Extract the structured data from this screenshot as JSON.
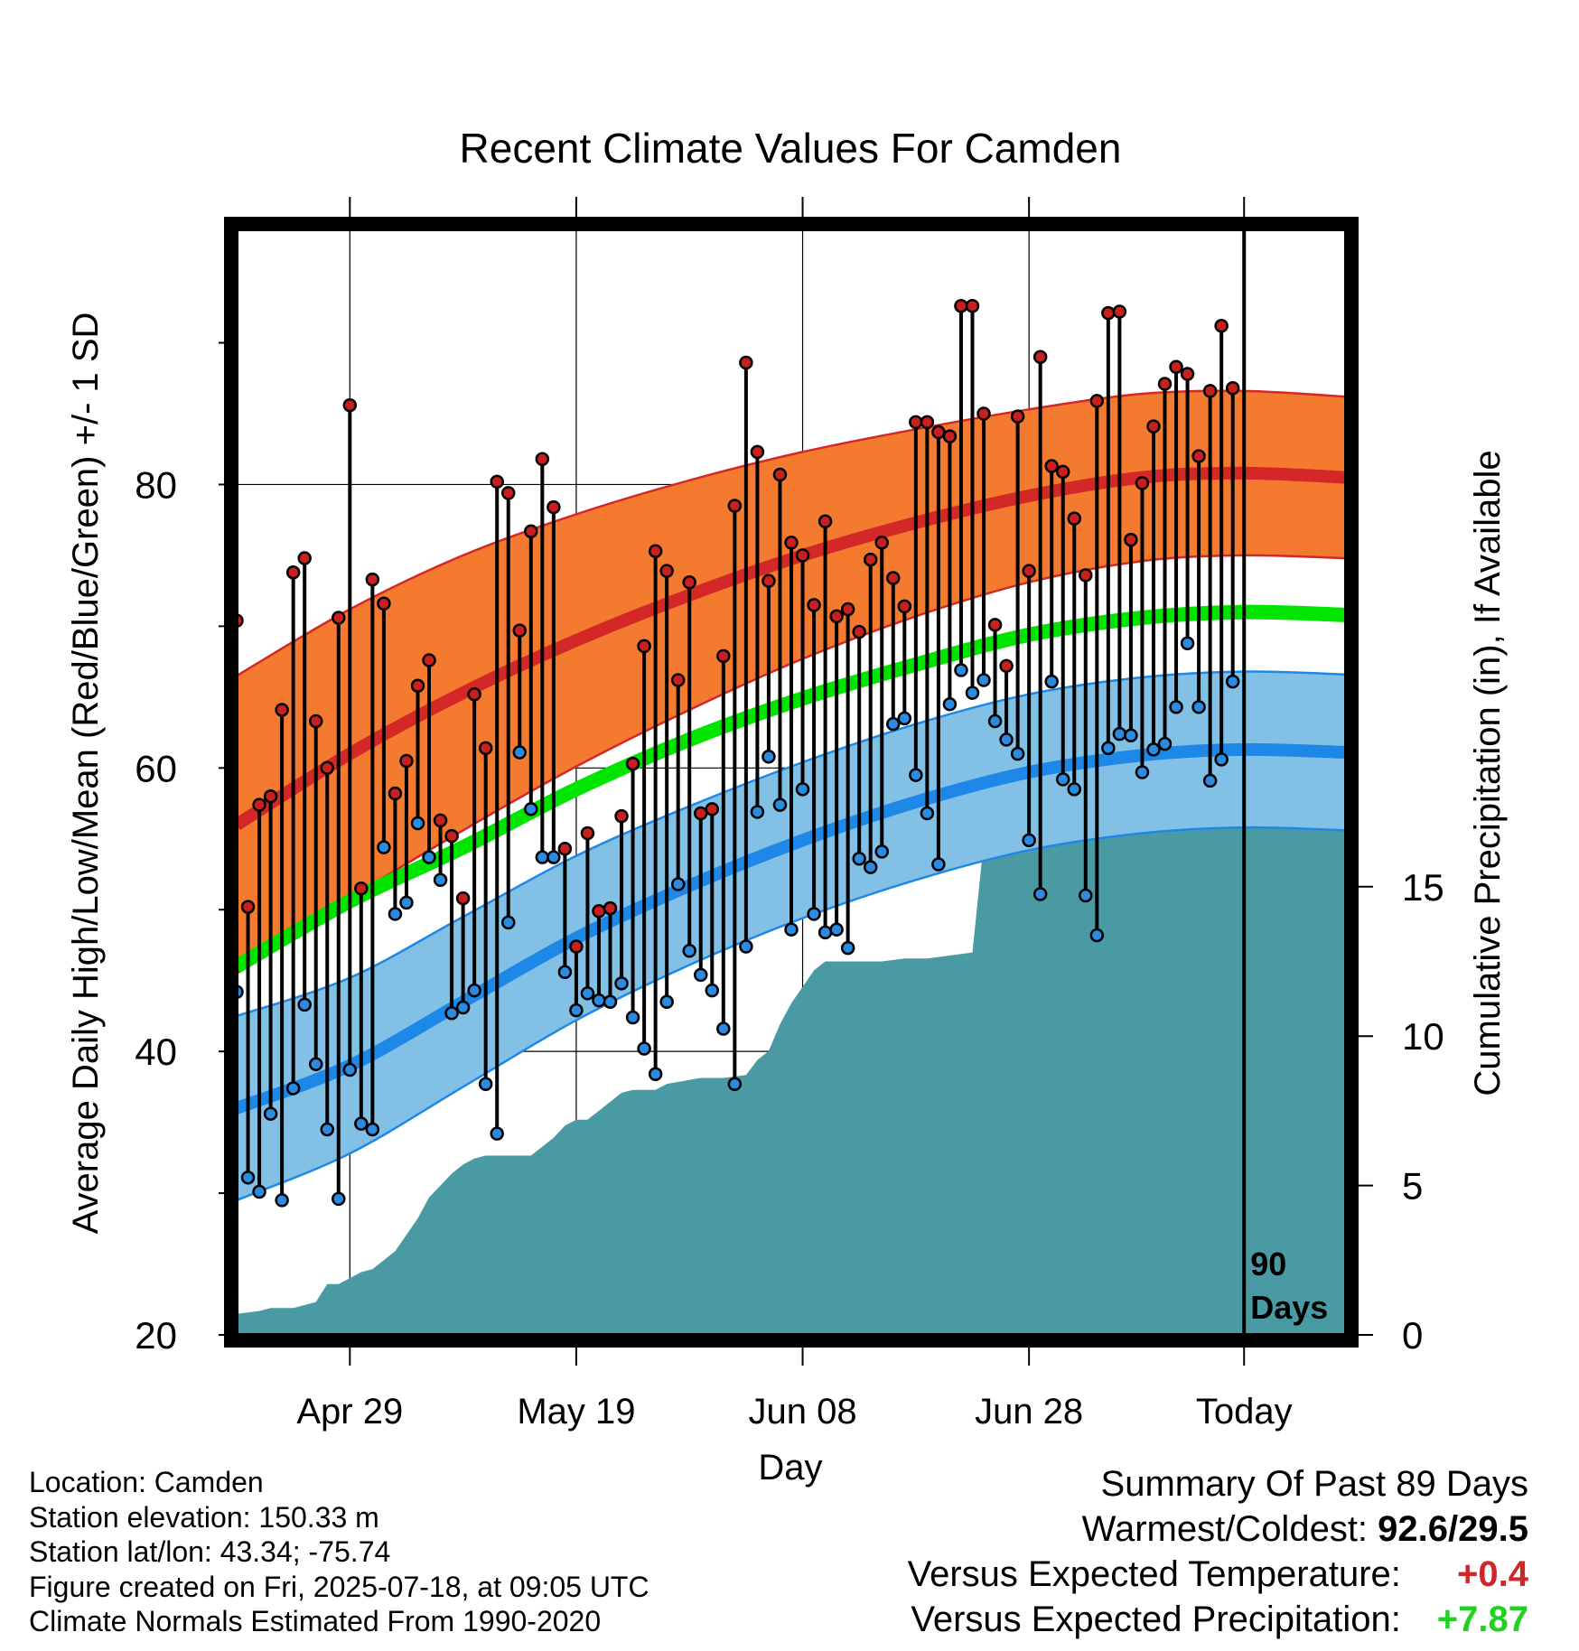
{
  "chart_data": {
    "type": "line",
    "title": "Recent Climate Values For Camden",
    "xlabel": "Day",
    "ylabel": "Average Daily High/Low/Mean (Red/Blue/Green) +/- 1 SD",
    "y2label": "Cumulative Precipitation (in), If Available",
    "ylim": [
      20,
      98
    ],
    "y2lim": [
      0,
      37
    ],
    "xlim": [
      -89,
      9
    ],
    "x_ticks": [
      {
        "day": -79,
        "label": "Apr 29"
      },
      {
        "day": -59,
        "label": "May 19"
      },
      {
        "day": -39,
        "label": "Jun 08"
      },
      {
        "day": -19,
        "label": "Jun 28"
      },
      {
        "day": 0,
        "label": "Today"
      }
    ],
    "y_ticks": [
      20,
      40,
      60,
      80
    ],
    "y_minor_ticks": [
      30,
      50,
      70,
      90
    ],
    "y2_ticks": [
      0,
      5,
      10,
      15
    ],
    "today_label": "90 Days",
    "grid": true,
    "colors": {
      "high": "#d42828",
      "high_band": "#f47a30",
      "low": "#1e88e8",
      "low_band": "#83c0e6",
      "mean": "#00e400",
      "precip": "#4a9aa3",
      "high_dot": "#c8201e",
      "low_dot": "#2a8be0"
    },
    "normals": {
      "days": [
        -89,
        -79,
        -69,
        -59,
        -49,
        -39,
        -29,
        -19,
        -9,
        0,
        9
      ],
      "high_mean": [
        56.0,
        61.0,
        65.3,
        69.0,
        72.2,
        75.0,
        77.3,
        79.2,
        80.5,
        80.8,
        80.5
      ],
      "high_sd": [
        10.5,
        10.2,
        9.7,
        8.9,
        8.1,
        7.3,
        6.6,
        6.1,
        5.9,
        5.8,
        5.7
      ],
      "low_mean": [
        36.0,
        39.0,
        43.5,
        48.0,
        51.7,
        54.9,
        57.6,
        59.7,
        60.9,
        61.3,
        61.1
      ],
      "low_sd": [
        6.5,
        6.2,
        6.0,
        5.8,
        5.6,
        5.5,
        5.5,
        5.5,
        5.5,
        5.5,
        5.5
      ],
      "mean": [
        46.0,
        50.6,
        54.4,
        58.5,
        62.0,
        64.9,
        67.3,
        69.4,
        70.6,
        71.0,
        70.8
      ]
    },
    "daily": {
      "start_day": -89,
      "high": [
        70.4,
        50.2,
        57.4,
        58.0,
        64.1,
        73.8,
        74.8,
        63.3,
        60.0,
        70.6,
        85.6,
        51.5,
        73.3,
        71.6,
        58.2,
        60.5,
        65.8,
        67.6,
        56.3,
        55.2,
        50.8,
        65.2,
        61.4,
        80.2,
        79.4,
        69.7,
        76.7,
        81.8,
        78.4,
        54.3,
        47.4,
        55.4,
        49.9,
        50.1,
        56.6,
        60.3,
        68.6,
        75.3,
        73.9,
        66.2,
        73.1,
        56.8,
        57.1,
        67.9,
        78.5,
        88.6,
        82.3,
        73.2,
        80.7,
        75.9,
        75.0,
        71.5,
        77.4,
        70.7,
        71.2,
        69.6,
        74.7,
        75.9,
        73.4,
        71.4,
        84.4,
        84.4,
        83.7,
        83.4,
        92.6,
        92.6,
        85.0,
        70.1,
        67.2,
        84.8,
        73.9,
        89.0,
        81.3,
        80.9,
        77.6,
        73.6,
        85.9,
        92.1,
        92.2,
        76.1,
        80.1,
        84.1,
        87.1,
        88.3,
        87.8,
        82.0,
        86.6,
        91.2,
        86.8
      ],
      "low": [
        44.2,
        31.1,
        30.1,
        35.6,
        29.5,
        37.4,
        43.3,
        39.1,
        34.5,
        29.6,
        38.7,
        34.9,
        34.5,
        54.4,
        49.7,
        50.5,
        56.1,
        53.7,
        52.1,
        42.7,
        43.1,
        44.3,
        37.7,
        34.2,
        49.1,
        61.1,
        57.1,
        53.7,
        53.7,
        45.6,
        42.9,
        44.1,
        43.6,
        43.5,
        44.8,
        42.4,
        40.2,
        38.4,
        43.5,
        51.8,
        47.1,
        45.4,
        44.3,
        41.6,
        37.7,
        47.4,
        56.9,
        60.8,
        57.4,
        48.6,
        58.5,
        49.7,
        48.4,
        48.6,
        47.3,
        53.6,
        53.0,
        54.1,
        63.1,
        63.5,
        59.5,
        56.8,
        53.2,
        64.5,
        66.9,
        65.3,
        66.2,
        63.3,
        62.0,
        61.0,
        54.9,
        51.1,
        66.1,
        59.2,
        58.5,
        51.0,
        48.2,
        61.4,
        62.4,
        62.3,
        59.7,
        61.3,
        61.7,
        64.3,
        68.8,
        64.3,
        59.1,
        60.6,
        66.1
      ]
    },
    "precip": {
      "days": [
        -89,
        -87,
        -86,
        -84,
        -82,
        -81,
        -80,
        -78,
        -77,
        -76,
        -75,
        -73,
        -72,
        -71,
        -70,
        -69,
        -68,
        -67,
        -66,
        -63,
        -62,
        -61,
        -60,
        -59,
        -58,
        -57,
        -55,
        -54,
        -53,
        -52,
        -51,
        -48,
        -47,
        -46,
        -44,
        -43,
        -42,
        -41,
        -40,
        -38,
        -37,
        -36,
        -35,
        -34,
        -33,
        -32,
        -30,
        -29,
        -28,
        -24,
        -23,
        -22,
        -21,
        -20,
        -19,
        -18,
        -17,
        -16,
        -15,
        -12,
        -11,
        -10,
        -9,
        -6,
        -5,
        -4,
        -3,
        -2,
        -1,
        0,
        9
      ],
      "cumulative": [
        0.7,
        0.8,
        0.9,
        0.9,
        1.1,
        1.7,
        1.7,
        2.1,
        2.2,
        2.5,
        2.8,
        3.9,
        4.6,
        5.0,
        5.4,
        5.7,
        5.9,
        6.0,
        6.0,
        6.0,
        6.3,
        6.6,
        7.0,
        7.2,
        7.2,
        7.5,
        8.1,
        8.2,
        8.2,
        8.2,
        8.4,
        8.6,
        8.6,
        8.6,
        8.7,
        9.2,
        9.5,
        10.4,
        11.1,
        12.2,
        12.5,
        12.5,
        12.5,
        12.5,
        12.5,
        12.5,
        12.6,
        12.6,
        12.6,
        12.8,
        16.5,
        16.5,
        16.5,
        16.5,
        16.6,
        16.6,
        16.7,
        16.8,
        17.2,
        17.3,
        17.4,
        17.5,
        17.6,
        17.6,
        17.6,
        17.6,
        19.6,
        19.6,
        19.6,
        19.6,
        19.6
      ]
    }
  },
  "info": {
    "location": "Location: Camden",
    "elevation": "Station elevation: 150.33 m",
    "latlon": "Station lat/lon: 43.34; -75.74",
    "created": "Figure created on Fri, 2025-07-18, at 09:05 UTC",
    "normals": "Climate Normals Estimated From 1990-2020"
  },
  "summary": {
    "title": "Summary Of Past 89 Days",
    "warm_cold_label": "Warmest/Coldest:",
    "warm_cold_value": "92.6/29.5",
    "temp_label": "Versus Expected Temperature:",
    "temp_value": "+0.4",
    "precip_label": "Versus Expected Precipitation:",
    "precip_value": "+7.87"
  }
}
